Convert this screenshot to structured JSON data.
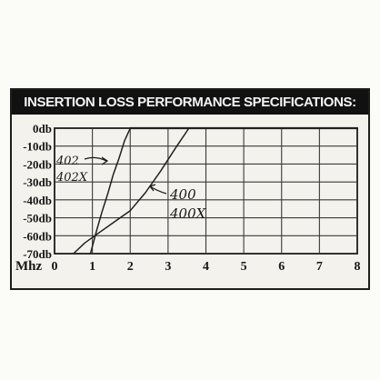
{
  "chart_data": {
    "type": "line",
    "title": "INSERTION LOSS PERFORMANCE SPECIFICATIONS:",
    "xlabel": "Mhz",
    "ylabel": "",
    "xlim": [
      0,
      8
    ],
    "ylim": [
      -70,
      0
    ],
    "x_ticks": [
      "0",
      "1",
      "2",
      "3",
      "4",
      "5",
      "6",
      "7",
      "8"
    ],
    "y_ticks": [
      "0db",
      "-10db",
      "-20db",
      "-30db",
      "-40db",
      "-50db",
      "-60db",
      "-70db"
    ],
    "grid": true,
    "series": [
      {
        "name": "402 402X",
        "x": [
          0.95,
          1.1,
          1.25,
          1.4,
          1.55,
          1.7,
          1.85,
          2.0
        ],
        "y": [
          -70,
          -58,
          -47,
          -37,
          -26,
          -17,
          -7,
          0
        ]
      },
      {
        "name": "400 400X",
        "x": [
          0.5,
          0.8,
          1.2,
          1.6,
          2.0,
          2.4,
          2.8,
          3.2,
          3.55
        ],
        "y": [
          -70,
          -64,
          -58,
          -52,
          -46,
          -36,
          -24,
          -11,
          0
        ]
      },
      {
        "name": "",
        "x": [
          2.0,
          3.0,
          4.0,
          5.0,
          6.0,
          7.0,
          8.0
        ],
        "y": [
          0,
          0,
          0,
          0,
          0,
          0,
          0
        ]
      }
    ],
    "annotations": [
      {
        "line1": "402",
        "line2": "402X"
      },
      {
        "line1": "400",
        "line2": "400X"
      }
    ]
  }
}
